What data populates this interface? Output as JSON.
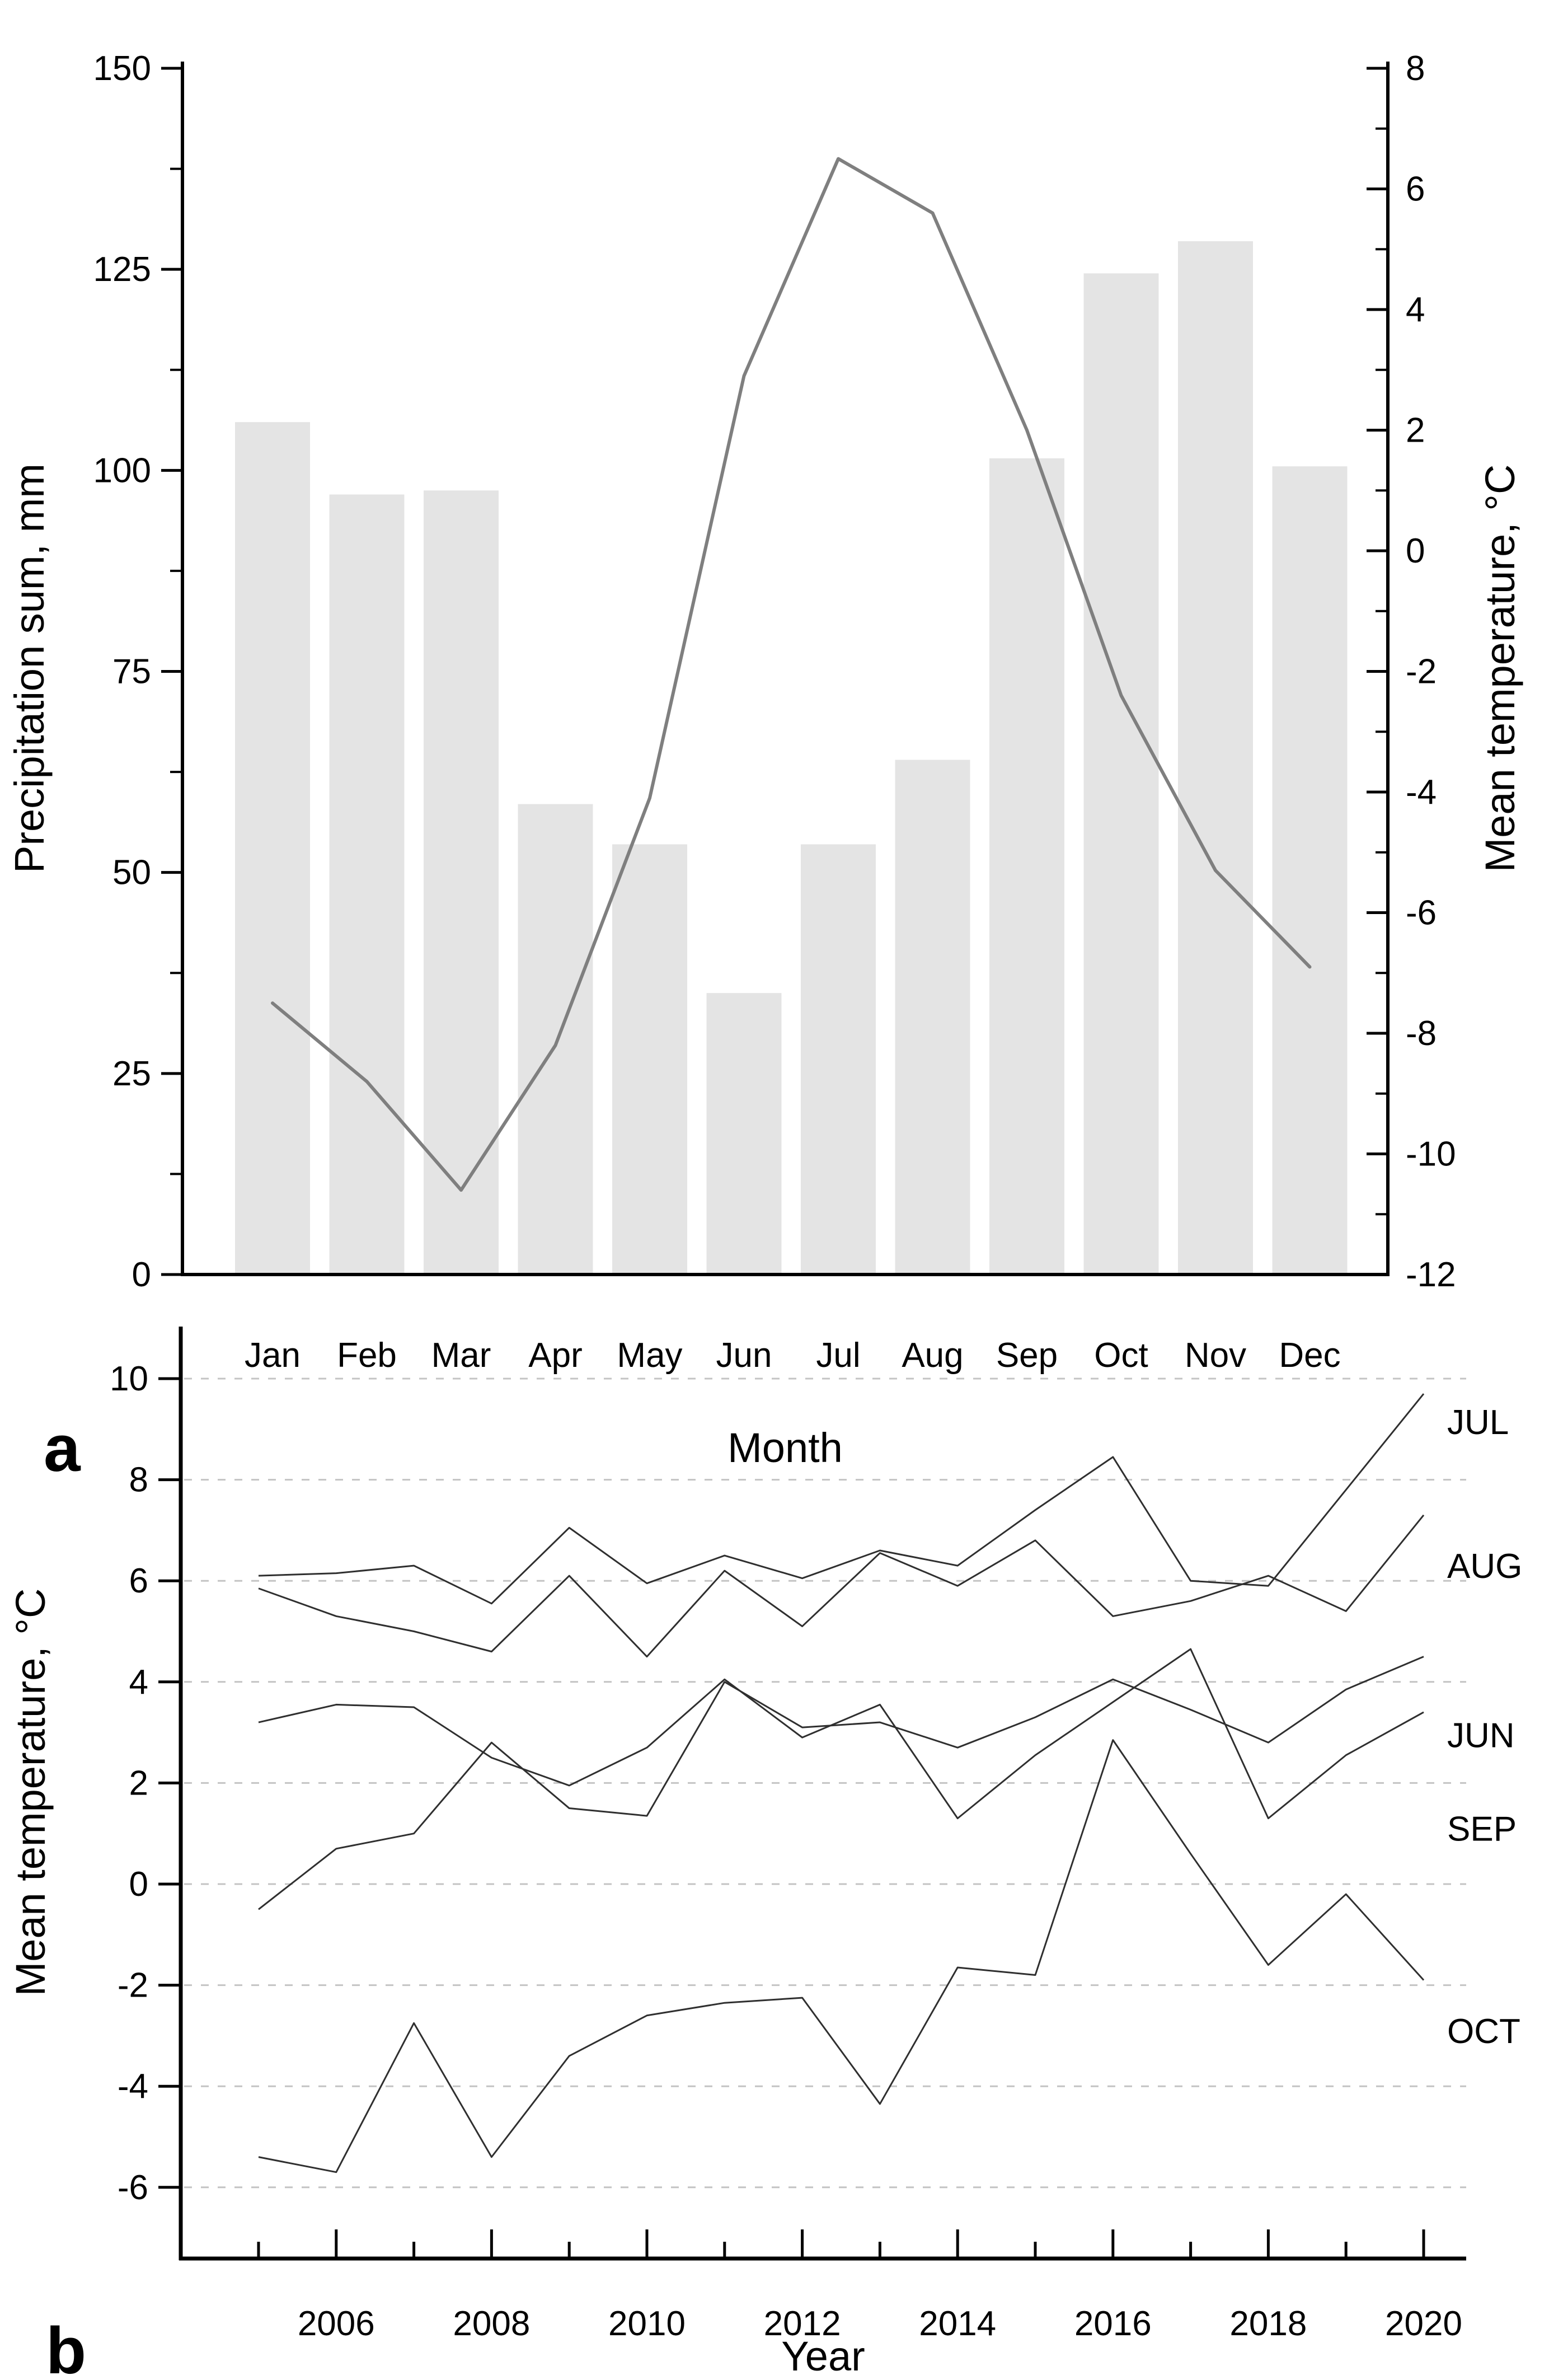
{
  "figure": {
    "background": "#ffffff",
    "panel_a_letter": "a",
    "panel_b_letter": "b"
  },
  "chart_data": [
    {
      "id": "a",
      "type": "bar",
      "subtype": "bar-line-combo",
      "title": "",
      "xlabel": "Month",
      "ylabel_left": "Precipitation sum, mm",
      "ylabel_right": "Mean temperature, °C",
      "categories": [
        "Jan",
        "Feb",
        "Mar",
        "Apr",
        "May",
        "Jun",
        "Jul",
        "Aug",
        "Sep",
        "Oct",
        "Nov",
        "Dec"
      ],
      "series": [
        {
          "name": "Precipitation sum",
          "type": "bar",
          "axis": "left",
          "color": "#e4e4e4",
          "values": [
            106,
            97,
            97.5,
            58.5,
            53.5,
            35,
            53.5,
            64,
            101.5,
            124.5,
            128.5,
            100.5
          ]
        },
        {
          "name": "Mean temperature",
          "type": "line",
          "axis": "right",
          "color": "#7f7f7f",
          "values": [
            -7.5,
            -8.8,
            -10.6,
            -8.2,
            -4.1,
            2.9,
            6.5,
            5.6,
            2.0,
            -2.4,
            -5.3,
            -6.9
          ]
        }
      ],
      "ylim_left": [
        0,
        150
      ],
      "yticks_left": [
        0,
        25,
        50,
        75,
        100,
        125,
        150
      ],
      "yminor_left_step": 12.5,
      "ylim_right": [
        -12,
        8
      ],
      "yticks_right": [
        8,
        6,
        4,
        2,
        0,
        -2,
        -4,
        -6,
        -8,
        -10,
        -12
      ],
      "yminor_right_step": 1,
      "grid": "off",
      "panel_letter": "a"
    },
    {
      "id": "b",
      "type": "line",
      "title": "",
      "xlabel": "Year",
      "ylabel": "Mean temperature, °C",
      "x": [
        2005,
        2006,
        2007,
        2008,
        2009,
        2010,
        2011,
        2012,
        2013,
        2014,
        2015,
        2016,
        2017,
        2018,
        2019,
        2020
      ],
      "series": [
        {
          "name": "JUL",
          "label_value": 9.15,
          "values": [
            6.1,
            6.15,
            6.3,
            5.55,
            7.05,
            5.95,
            6.5,
            6.05,
            6.6,
            6.3,
            7.4,
            8.45,
            6.0,
            5.9,
            7.8,
            9.7
          ]
        },
        {
          "name": "AUG",
          "label_value": 6.3,
          "values": [
            5.85,
            5.3,
            5.0,
            4.6,
            6.1,
            4.5,
            6.2,
            5.1,
            6.55,
            5.9,
            6.8,
            5.3,
            5.6,
            6.1,
            5.4,
            7.3
          ]
        },
        {
          "name": "JUN",
          "label_value": 2.95,
          "values": [
            -0.5,
            0.7,
            1.0,
            2.8,
            1.5,
            1.35,
            4.0,
            3.1,
            3.2,
            2.7,
            3.3,
            4.05,
            3.45,
            2.8,
            3.85,
            4.5
          ]
        },
        {
          "name": "SEP",
          "label_value": 1.1,
          "values": [
            3.2,
            3.55,
            3.5,
            2.5,
            1.95,
            2.7,
            4.05,
            2.9,
            3.55,
            1.3,
            2.55,
            3.6,
            4.65,
            1.3,
            2.55,
            3.4
          ]
        },
        {
          "name": "OCT",
          "label_value": -2.9,
          "values": [
            -5.4,
            -5.7,
            -2.75,
            -5.4,
            -3.4,
            -2.6,
            -2.35,
            -2.25,
            -4.35,
            -1.65,
            -1.8,
            2.85,
            0.6,
            -1.6,
            -0.2,
            -1.9
          ]
        }
      ],
      "line_color": "#2f2f2f",
      "ylim": [
        -7.3,
        11.1
      ],
      "yticks": [
        10,
        8,
        6,
        4,
        2,
        0,
        -2,
        -4,
        -6
      ],
      "xticks_labeled": [
        2006,
        2008,
        2010,
        2012,
        2014,
        2016,
        2018,
        2020
      ],
      "xticks_minor": [
        2005,
        2007,
        2009,
        2011,
        2013,
        2015,
        2017,
        2019
      ],
      "grid": "horizontal-dashed",
      "grid_color": "#c4c4c4",
      "legend_position": "right-edge-inline-labels"
    }
  ]
}
